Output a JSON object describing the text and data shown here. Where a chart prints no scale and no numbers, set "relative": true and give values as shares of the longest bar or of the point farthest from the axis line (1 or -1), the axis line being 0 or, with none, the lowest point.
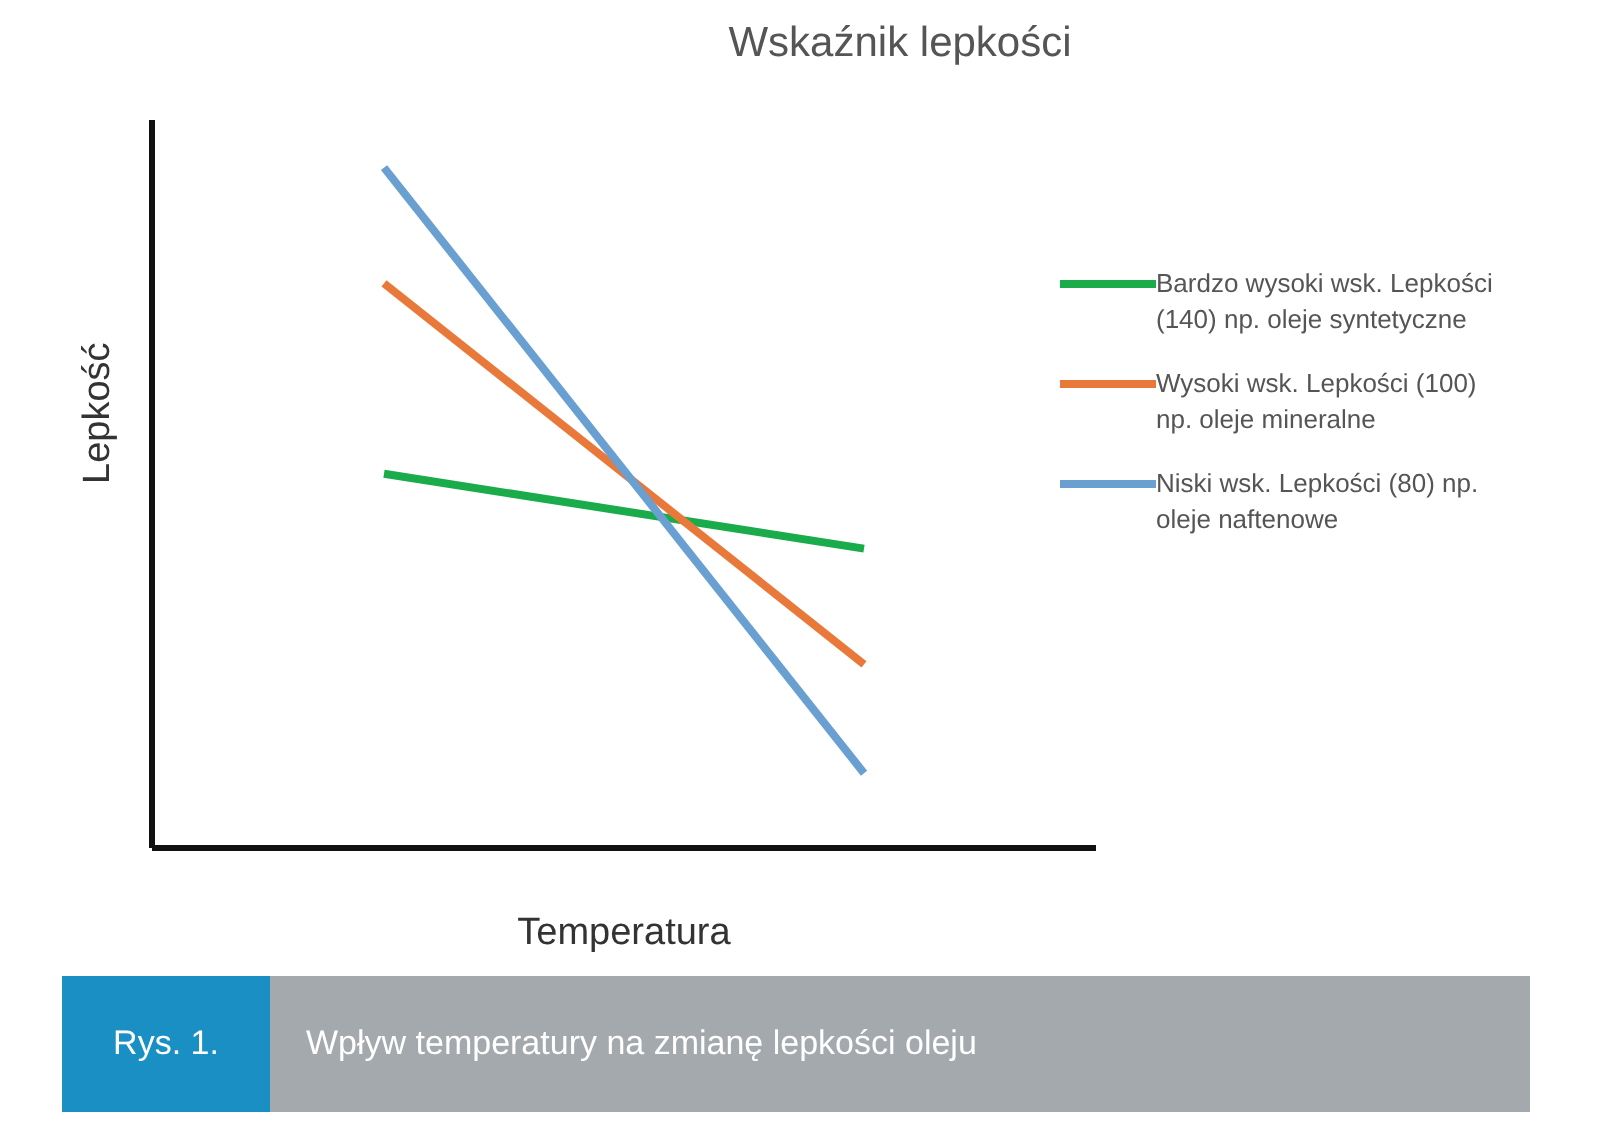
{
  "chart_data": {
    "type": "line",
    "title": "Wskaźnik lepkości",
    "xlabel": "Temperatura",
    "ylabel": "Lepkość",
    "relative": true,
    "categories": [
      null,
      null
    ],
    "series": [
      {
        "name": "Bardzo wysoki wsk. Lepkości (140) np. oleje syntetyczne",
        "color": "#1aab4b",
        "values": [
          0.55,
          0.44
        ]
      },
      {
        "name": "Wysoki wsk. Lepkości (100) np. oleje mineralne",
        "color": "#e8793a",
        "values": [
          0.83,
          0.27
        ]
      },
      {
        "name": "Niski wsk. Lepkości (80) np. oleje naftenowe",
        "color": "#6a9fd1",
        "values": [
          1,
          0.11
        ]
      }
    ],
    "legend": "right",
    "grid": false,
    "marker": "none",
    "line_style": "solid",
    "annotations": [
      "Rys. 1.",
      "Wpływ temperatury na zmianę lepkości oleju"
    ]
  }
}
